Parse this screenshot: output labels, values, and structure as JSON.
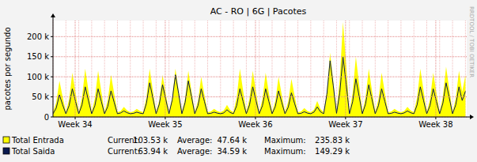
{
  "chart_data": {
    "type": "area",
    "title": "AC - RO | 6G | Pacotes",
    "y_label": "pacotes por segundo",
    "watermark": "RRDTOOL / TOBI OETIKER",
    "grid": true,
    "xlim": [
      0,
      32.1
    ],
    "xticks": [
      {
        "value": 1.72,
        "label": "Week 34"
      },
      {
        "value": 8.71,
        "label": "Week 35"
      },
      {
        "value": 15.71,
        "label": "Week 36"
      },
      {
        "value": 22.7,
        "label": "Week 37"
      },
      {
        "value": 29.7,
        "label": "Week 38"
      }
    ],
    "ylim": [
      0,
      240000
    ],
    "yticks": [
      0,
      {
        "value": 50000,
        "label": "50 k"
      },
      {
        "value": 100000,
        "label": "100 k"
      },
      {
        "value": 150000,
        "label": "150 k"
      },
      {
        "value": 200000,
        "label": "200 k"
      }
    ],
    "x": [
      0,
      0.25,
      0.5,
      0.75,
      1,
      1.25,
      1.5,
      1.75,
      2,
      2.25,
      2.5,
      2.75,
      3,
      3.25,
      3.5,
      3.75,
      4,
      4.25,
      4.5,
      4.75,
      5,
      5.25,
      5.5,
      5.75,
      6,
      6.25,
      6.5,
      6.75,
      7,
      7.25,
      7.5,
      7.75,
      8,
      8.25,
      8.5,
      8.75,
      9,
      9.25,
      9.5,
      9.75,
      10,
      10.25,
      10.5,
      10.75,
      11,
      11.25,
      11.5,
      11.75,
      12,
      12.25,
      12.5,
      12.75,
      13,
      13.25,
      13.5,
      13.75,
      14,
      14.25,
      14.5,
      14.75,
      15,
      15.25,
      15.5,
      15.75,
      16,
      16.25,
      16.5,
      16.75,
      17,
      17.25,
      17.5,
      17.75,
      18,
      18.25,
      18.5,
      18.75,
      19,
      19.25,
      19.5,
      19.75,
      20,
      20.25,
      20.5,
      20.75,
      21,
      21.25,
      21.5,
      21.75,
      22,
      22.25,
      22.5,
      22.75,
      23,
      23.25,
      23.5,
      23.75,
      24,
      24.25,
      24.5,
      24.75,
      25,
      25.25,
      25.5,
      25.75,
      26,
      26.25,
      26.5,
      26.75,
      27,
      27.25,
      27.5,
      27.75,
      28,
      28.25,
      28.5,
      28.75,
      29,
      29.25,
      29.5,
      29.75,
      30,
      30.25,
      30.5,
      30.75,
      31,
      31.25,
      31.5,
      31.75,
      32
    ],
    "series": [
      {
        "name": "Total Entrada",
        "type": "area",
        "color": "#ffff00",
        "stats": [
          {
            "label": "Current:",
            "text": "103.53 k"
          },
          {
            "label": "Average:",
            "text": "47.64 k"
          },
          {
            "label": "Maximum:",
            "text": "235.83 k"
          }
        ],
        "values": [
          12000,
          36000,
          90000,
          49500,
          12000,
          44000,
          110000,
          60500,
          12000,
          48000,
          120000,
          66000,
          12000,
          46000,
          115000,
          63000,
          12000,
          42000,
          105000,
          58000,
          12000,
          15000,
          25000,
          16000,
          12000,
          14000,
          20000,
          15000,
          12000,
          48000,
          120000,
          66000,
          12000,
          42000,
          105000,
          58000,
          12000,
          48000,
          120000,
          66000,
          12000,
          46000,
          115000,
          63000,
          12000,
          40000,
          100000,
          55000,
          12000,
          14000,
          20000,
          15000,
          12000,
          16000,
          30000,
          17000,
          12000,
          48000,
          120000,
          66000,
          12000,
          46000,
          115000,
          63000,
          12000,
          44000,
          110000,
          60000,
          12000,
          40000,
          100000,
          55000,
          12000,
          38000,
          95000,
          52000,
          12000,
          14000,
          22000,
          15000,
          12000,
          18000,
          40000,
          20000,
          12000,
          64000,
          160000,
          88000,
          14000,
          94000,
          235830,
          130000,
          12000,
          60000,
          150000,
          82000,
          12000,
          48000,
          120000,
          66000,
          12000,
          44000,
          110000,
          60000,
          12000,
          14000,
          20000,
          15000,
          12000,
          15000,
          25000,
          16000,
          12000,
          48000,
          120000,
          66000,
          12000,
          44000,
          110000,
          60000,
          12000,
          50000,
          125000,
          69000,
          12000,
          46000,
          115000,
          63000,
          103530
        ]
      },
      {
        "name": "Total Saida",
        "type": "line",
        "color": "#0a1a4f",
        "stats": [
          {
            "label": "Current:",
            "text": "63.94 k"
          },
          {
            "label": "Average:",
            "text": "34.59 k"
          },
          {
            "label": "Maximum:",
            "text": "149.29 k"
          }
        ],
        "values": [
          8000,
          22000,
          55000,
          30000,
          8000,
          28000,
          70000,
          38500,
          8000,
          30000,
          75000,
          41000,
          8000,
          28000,
          70000,
          38500,
          8000,
          26000,
          65000,
          36000,
          8000,
          10000,
          15000,
          10500,
          8000,
          9000,
          12000,
          9500,
          8000,
          34000,
          85000,
          47000,
          8000,
          32000,
          80000,
          44000,
          8000,
          42000,
          105000,
          58000,
          8000,
          36000,
          90000,
          50000,
          8000,
          28000,
          70000,
          38500,
          8000,
          9000,
          12000,
          9500,
          8000,
          10000,
          18000,
          11000,
          8000,
          28000,
          70000,
          38500,
          8000,
          30000,
          75000,
          41000,
          8000,
          28000,
          70000,
          38500,
          8000,
          26000,
          65000,
          36000,
          8000,
          24000,
          60000,
          33000,
          8000,
          9000,
          13000,
          9500,
          8000,
          12000,
          25000,
          13000,
          8000,
          56000,
          140000,
          77000,
          9000,
          60000,
          149290,
          82000,
          8000,
          38000,
          95000,
          52000,
          8000,
          32000,
          80000,
          44000,
          8000,
          28000,
          70000,
          38500,
          8000,
          9000,
          12000,
          9500,
          8000,
          10000,
          15000,
          10500,
          8000,
          30000,
          75000,
          41000,
          8000,
          28000,
          70000,
          38500,
          8000,
          34000,
          85000,
          47000,
          8000,
          30000,
          75000,
          41000,
          63940
        ]
      }
    ]
  }
}
